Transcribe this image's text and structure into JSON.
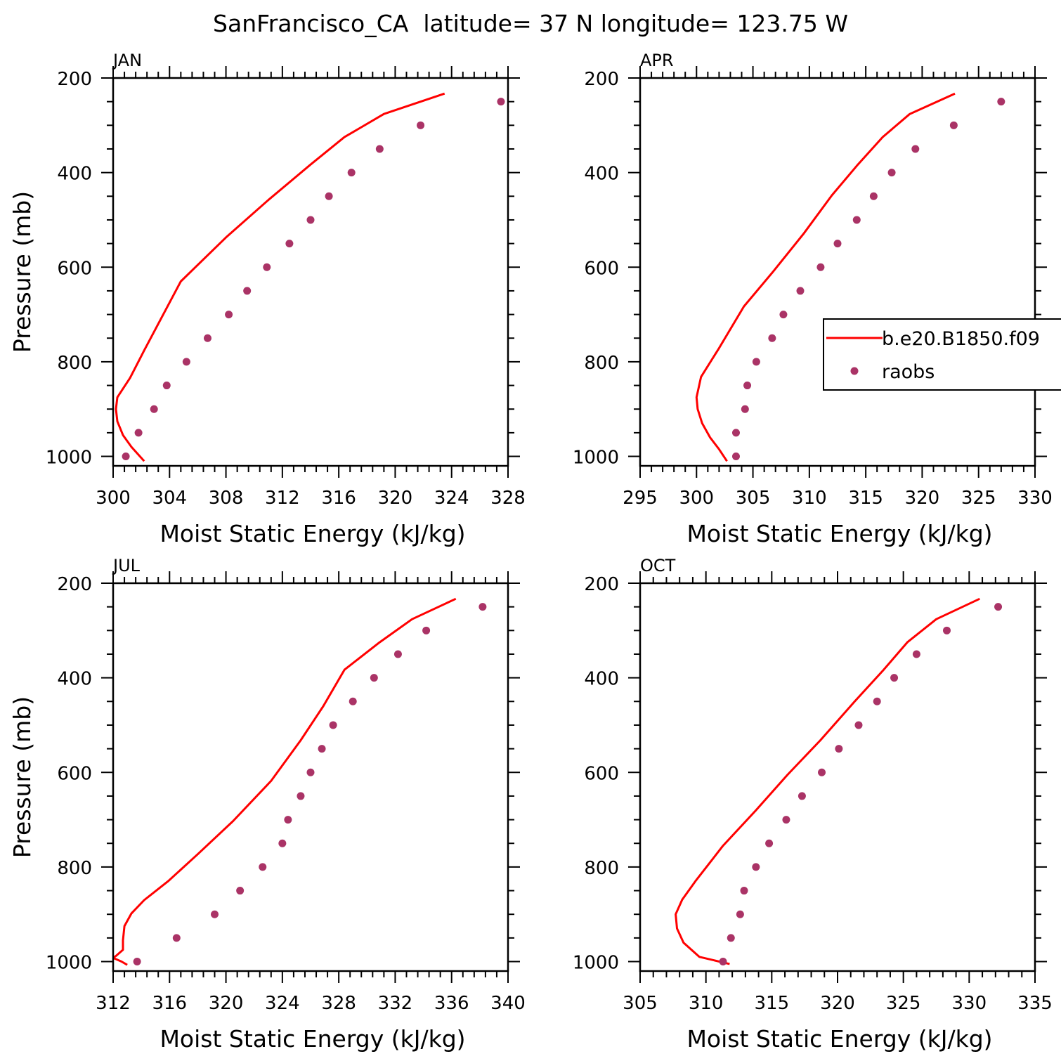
{
  "title": "SanFrancisco_CA  latitude= 37 N longitude= 123.75 W",
  "colors": {
    "model": "#ff0000",
    "obs": "#aa3366",
    "axis": "#000000"
  },
  "legend": {
    "model_label": "b.e20.B1850.f09",
    "obs_label": "raobs",
    "placement": "right-middle of APR panel, clipped at figure edge"
  },
  "chart_data": [
    {
      "type": "line",
      "panel": "JAN",
      "xlabel": "Moist Static Energy (kJ/kg)",
      "ylabel": "Pressure (mb)",
      "xlim": [
        300,
        328
      ],
      "ylim": [
        1020,
        200
      ],
      "xticks": [
        300,
        304,
        308,
        312,
        316,
        320,
        324,
        328
      ],
      "yticks": [
        200,
        400,
        600,
        800,
        1000
      ],
      "series": [
        {
          "name": "b.e20.B1850.f09",
          "kind": "line",
          "points": [
            [
              323.5,
              233
            ],
            [
              319.2,
              276
            ],
            [
              316.4,
              325
            ],
            [
              314.0,
              383
            ],
            [
              311.0,
              458
            ],
            [
              308.0,
              537
            ],
            [
              304.8,
              630
            ],
            [
              302.2,
              776
            ],
            [
              301.2,
              834
            ],
            [
              300.3,
              875
            ],
            [
              300.2,
              900
            ],
            [
              300.3,
              926
            ],
            [
              300.7,
              955
            ],
            [
              301.3,
              980
            ],
            [
              302.2,
              1010
            ]
          ]
        },
        {
          "name": "raobs",
          "kind": "scatter",
          "points": [
            [
              327.5,
              250
            ],
            [
              321.8,
              300
            ],
            [
              318.9,
              350
            ],
            [
              316.9,
              400
            ],
            [
              315.3,
              450
            ],
            [
              314.0,
              500
            ],
            [
              312.5,
              550
            ],
            [
              310.9,
              600
            ],
            [
              309.5,
              650
            ],
            [
              308.2,
              700
            ],
            [
              306.7,
              750
            ],
            [
              305.2,
              800
            ],
            [
              303.8,
              850
            ],
            [
              302.9,
              900
            ],
            [
              301.8,
              950
            ],
            [
              300.9,
              1000
            ]
          ]
        }
      ]
    },
    {
      "type": "line",
      "panel": "APR",
      "xlabel": "Moist Static Energy (kJ/kg)",
      "ylabel": "",
      "xlim": [
        295,
        330
      ],
      "ylim": [
        1020,
        200
      ],
      "xticks": [
        295,
        300,
        305,
        310,
        315,
        320,
        325,
        330
      ],
      "yticks": [
        200,
        400,
        600,
        800,
        1000
      ],
      "series": [
        {
          "name": "b.e20.B1850.f09",
          "kind": "line",
          "points": [
            [
              322.9,
              233
            ],
            [
              318.9,
              276
            ],
            [
              316.5,
              325
            ],
            [
              314.3,
              383
            ],
            [
              312.0,
              448
            ],
            [
              309.5,
              529
            ],
            [
              306.8,
              609
            ],
            [
              304.2,
              683
            ],
            [
              302.0,
              771
            ],
            [
              300.4,
              832
            ],
            [
              300.0,
              875
            ],
            [
              300.1,
              900
            ],
            [
              300.5,
              930
            ],
            [
              301.2,
              960
            ],
            [
              302.0,
              985
            ],
            [
              302.7,
              1010
            ]
          ]
        },
        {
          "name": "raobs",
          "kind": "scatter",
          "points": [
            [
              327.0,
              250
            ],
            [
              322.8,
              300
            ],
            [
              319.4,
              350
            ],
            [
              317.3,
              400
            ],
            [
              315.7,
              450
            ],
            [
              314.2,
              500
            ],
            [
              312.5,
              550
            ],
            [
              311.0,
              600
            ],
            [
              309.2,
              650
            ],
            [
              307.7,
              700
            ],
            [
              306.7,
              750
            ],
            [
              305.3,
              800
            ],
            [
              304.5,
              850
            ],
            [
              304.3,
              900
            ],
            [
              303.5,
              950
            ],
            [
              303.5,
              1000
            ]
          ]
        }
      ]
    },
    {
      "type": "line",
      "panel": "JUL",
      "xlabel": "Moist Static Energy (kJ/kg)",
      "ylabel": "Pressure (mb)",
      "xlim": [
        312,
        340
      ],
      "ylim": [
        1020,
        200
      ],
      "xticks": [
        312,
        316,
        320,
        324,
        328,
        332,
        336,
        340
      ],
      "yticks": [
        200,
        400,
        600,
        800,
        1000
      ],
      "series": [
        {
          "name": "b.e20.B1850.f09",
          "kind": "line",
          "points": [
            [
              336.3,
              233
            ],
            [
              333.2,
              276
            ],
            [
              330.9,
              325
            ],
            [
              328.4,
              383
            ],
            [
              326.9,
              460
            ],
            [
              325.3,
              532
            ],
            [
              323.2,
              618
            ],
            [
              320.5,
              703
            ],
            [
              318.0,
              773
            ],
            [
              315.9,
              830
            ],
            [
              314.2,
              870
            ],
            [
              313.3,
              898
            ],
            [
              312.8,
              925
            ],
            [
              312.7,
              955
            ],
            [
              312.7,
              975
            ],
            [
              312.2,
              988
            ],
            [
              312.0,
              992
            ],
            [
              312.6,
              1000
            ],
            [
              313.0,
              1007
            ]
          ]
        },
        {
          "name": "raobs",
          "kind": "scatter",
          "points": [
            [
              338.2,
              250
            ],
            [
              334.2,
              300
            ],
            [
              332.2,
              350
            ],
            [
              330.5,
              400
            ],
            [
              329.0,
              450
            ],
            [
              327.6,
              500
            ],
            [
              326.8,
              550
            ],
            [
              326.0,
              600
            ],
            [
              325.3,
              650
            ],
            [
              324.4,
              700
            ],
            [
              324.0,
              750
            ],
            [
              322.6,
              800
            ],
            [
              321.0,
              850
            ],
            [
              319.2,
              900
            ],
            [
              316.5,
              950
            ],
            [
              313.7,
              1000
            ]
          ]
        }
      ]
    },
    {
      "type": "line",
      "panel": "OCT",
      "xlabel": "Moist Static Energy (kJ/kg)",
      "ylabel": "",
      "xlim": [
        305,
        335
      ],
      "ylim": [
        1020,
        200
      ],
      "xticks": [
        305,
        310,
        315,
        320,
        325,
        330,
        335
      ],
      "yticks": [
        200,
        400,
        600,
        800,
        1000
      ],
      "series": [
        {
          "name": "b.e20.B1850.f09",
          "kind": "line",
          "points": [
            [
              330.8,
              233
            ],
            [
              327.5,
              276
            ],
            [
              325.3,
              325
            ],
            [
              323.5,
              383
            ],
            [
              321.3,
              450
            ],
            [
              318.7,
              532
            ],
            [
              316.2,
              605
            ],
            [
              313.8,
              680
            ],
            [
              311.3,
              755
            ],
            [
              309.2,
              830
            ],
            [
              308.2,
              869
            ],
            [
              307.7,
              900
            ],
            [
              307.8,
              930
            ],
            [
              308.3,
              960
            ],
            [
              309.5,
              990
            ],
            [
              311.8,
              1005
            ]
          ]
        },
        {
          "name": "raobs",
          "kind": "scatter",
          "points": [
            [
              332.2,
              250
            ],
            [
              328.3,
              300
            ],
            [
              326.0,
              350
            ],
            [
              324.3,
              400
            ],
            [
              323.0,
              450
            ],
            [
              321.6,
              500
            ],
            [
              320.1,
              550
            ],
            [
              318.8,
              600
            ],
            [
              317.3,
              650
            ],
            [
              316.1,
              700
            ],
            [
              314.8,
              750
            ],
            [
              313.8,
              800
            ],
            [
              312.9,
              850
            ],
            [
              312.6,
              900
            ],
            [
              311.9,
              950
            ],
            [
              311.3,
              1000
            ]
          ]
        }
      ]
    }
  ]
}
